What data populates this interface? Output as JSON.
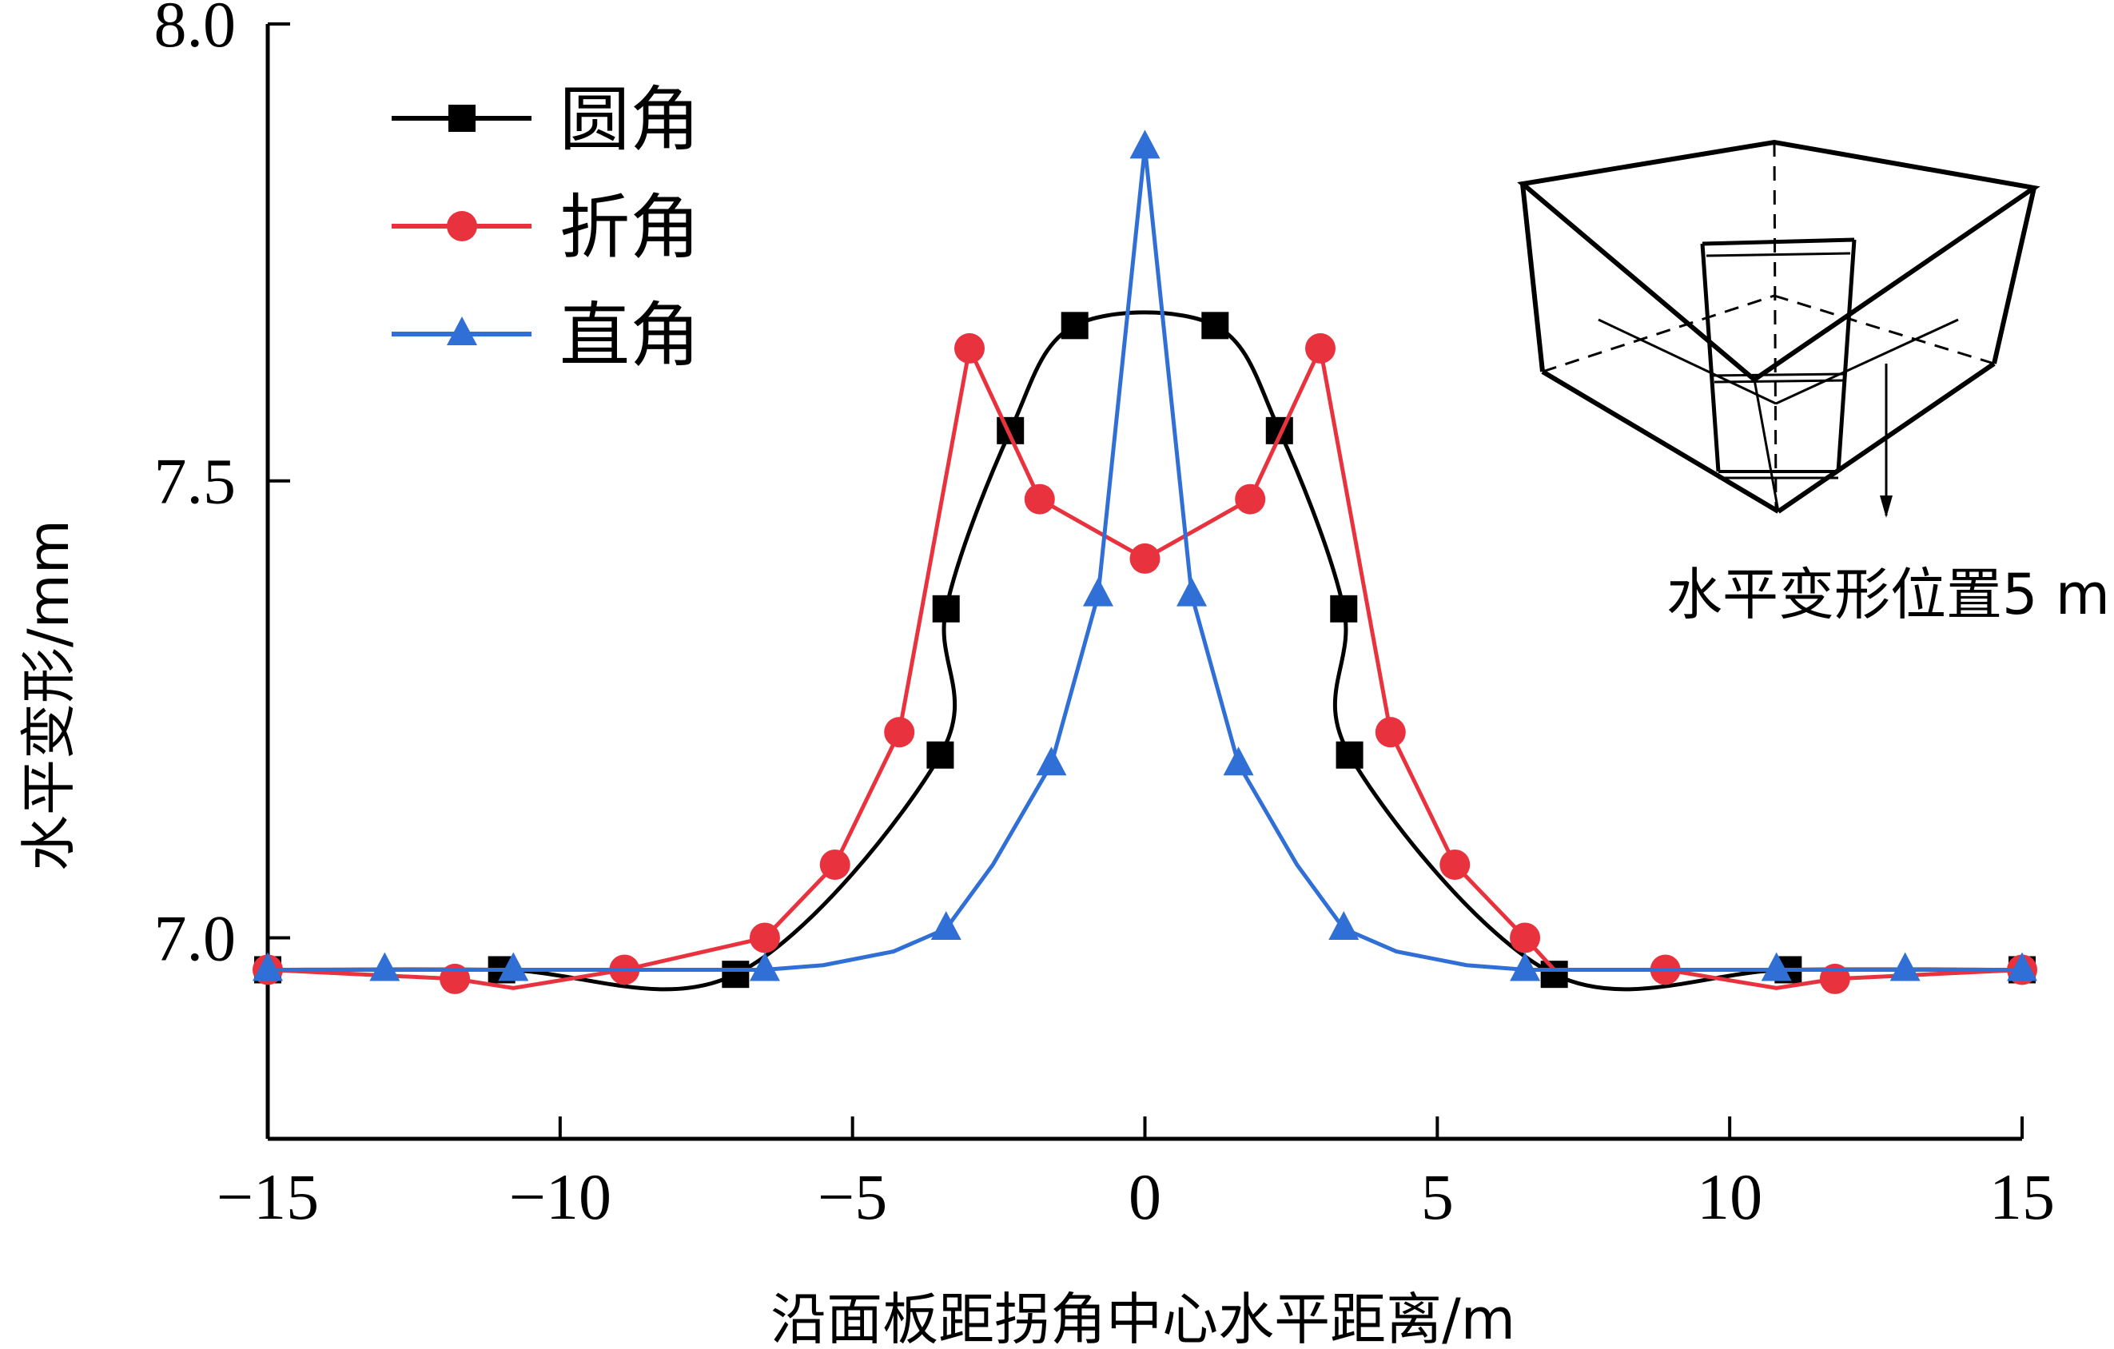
{
  "chart_data": {
    "type": "line",
    "xlabel": "沿面板距拐角中心水平距离/m",
    "ylabel": "水平变形/mm",
    "xlim": [
      -15,
      15
    ],
    "ylim": [
      6.78,
      8.0
    ],
    "xticks": [
      "−15",
      "−10",
      "−5",
      "0",
      "5",
      "10",
      "15"
    ],
    "xtick_values": [
      -15,
      -10,
      -5,
      0,
      5,
      10,
      15
    ],
    "yticks": [
      "7.0",
      "7.5",
      "8.0"
    ],
    "ytick_values": [
      7.0,
      7.5,
      8.0
    ],
    "legend_position": "top-left",
    "annotation": "水平变形位置5 m",
    "series": [
      {
        "name": "圆角",
        "color": "#000000",
        "marker": "square",
        "curve": "smooth",
        "x": [
          -15,
          -11,
          -7,
          -3.5,
          -3.4,
          -2.3,
          -1.2,
          1.2,
          2.3,
          3.4,
          3.5,
          7,
          11,
          15
        ],
        "y": [
          6.965,
          6.965,
          6.96,
          7.2,
          7.36,
          7.555,
          7.67,
          7.67,
          7.555,
          7.36,
          7.2,
          6.96,
          6.965,
          6.965
        ]
      },
      {
        "name": "折角",
        "color": "#e8333f",
        "marker": "circle",
        "curve": "linear",
        "x": [
          -15,
          -11.8,
          -10.8,
          -8.9,
          -6.5,
          -5.3,
          -4.2,
          -3.0,
          -1.8,
          0,
          1.8,
          3.0,
          4.2,
          5.3,
          6.5,
          7.0,
          8.9,
          10.8,
          11.8,
          15
        ],
        "y": [
          6.965,
          6.955,
          6.945,
          6.965,
          7.0,
          7.08,
          7.225,
          7.645,
          7.48,
          7.415,
          7.48,
          7.645,
          7.225,
          7.08,
          7.0,
          6.965,
          6.965,
          6.945,
          6.955,
          6.965
        ]
      },
      {
        "name": "直角",
        "color": "#2f6fd6",
        "marker": "triangle",
        "curve": "linear",
        "x": [
          -15,
          -13,
          -10.8,
          -6.5,
          -5.5,
          -4.3,
          -3.4,
          -2.6,
          -1.6,
          -0.8,
          0,
          0.8,
          1.6,
          2.6,
          3.4,
          4.3,
          5.5,
          6.5,
          10.8,
          13,
          15
        ],
        "y": [
          6.965,
          6.965,
          6.965,
          6.965,
          6.97,
          6.985,
          7.01,
          7.08,
          7.19,
          7.375,
          7.865,
          7.375,
          7.19,
          7.08,
          7.01,
          6.985,
          6.97,
          6.965,
          6.965,
          6.965,
          6.965
        ]
      }
    ],
    "markers_at": [
      [
        -15,
        -11,
        -7,
        -3.5,
        -3.4,
        -2.3,
        -1.2,
        1.2,
        2.3,
        3.4,
        3.5,
        7,
        11,
        15
      ],
      [
        -15,
        -11.8,
        -8.9,
        -6.5,
        -5.3,
        -4.2,
        -3.0,
        -1.8,
        0,
        1.8,
        3.0,
        4.2,
        5.3,
        6.5,
        8.9,
        11.8,
        15
      ],
      [
        -15,
        -13,
        -10.8,
        -6.5,
        -3.4,
        -1.6,
        -0.8,
        0,
        0.8,
        1.6,
        3.4,
        6.5,
        10.8,
        13,
        15
      ]
    ]
  }
}
